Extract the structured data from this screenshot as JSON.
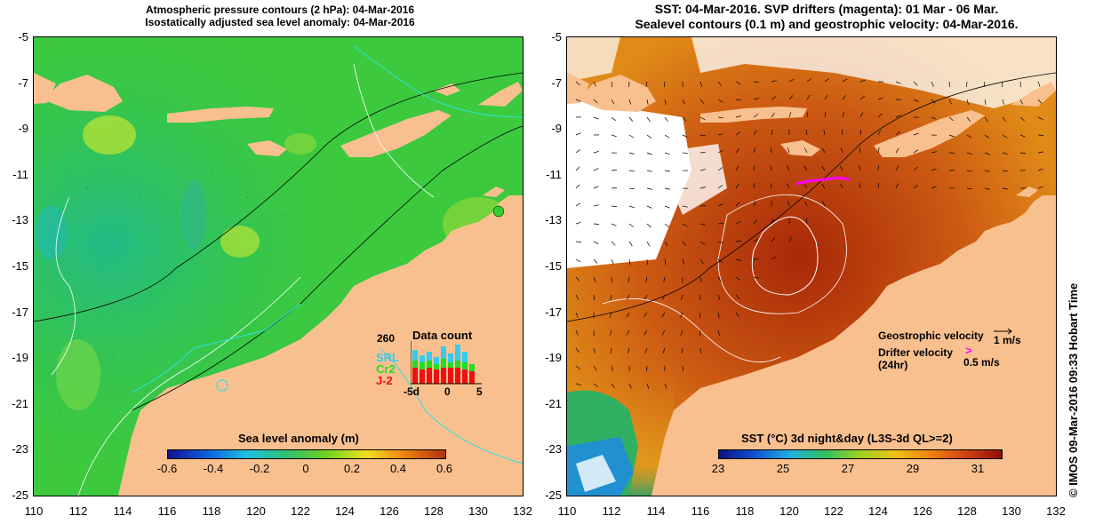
{
  "left_panel": {
    "title_line1": "Atmospheric pressure contours (2 hPa): 04-Mar-2016",
    "title_line2": "Isostatically adjusted sea level anomaly: 04-Mar-2016",
    "colorbar": {
      "label": "Sea level anomaly (m)",
      "ticks": [
        "-0.6",
        "-0.4",
        "-0.2",
        "0",
        "0.2",
        "0.4",
        "0.6"
      ]
    },
    "inset": {
      "title": "Data count",
      "max_label": "260",
      "series": [
        {
          "name": "SRL",
          "color": "#33ccee"
        },
        {
          "name": "Cr2",
          "color": "#22dd22"
        },
        {
          "name": "J-2",
          "color": "#ee1111"
        }
      ],
      "x_ticks": [
        "-5d",
        "0",
        "5"
      ]
    }
  },
  "right_panel": {
    "title_line1": "SST: 04-Mar-2016. SVP drifters (magenta): 01 Mar - 06 Mar.",
    "title_line2": "Sealevel contours (0.1 m) and geostrophic velocity: 04-Mar-2016.",
    "legend": {
      "geostrophic_label": "Geostrophic velocity",
      "geostrophic_scale": "1 m/s",
      "drifter_label": "Drifter velocity",
      "drifter_sub": "(24hr)",
      "drifter_scale": "0.5 m/s"
    },
    "colorbar": {
      "label": "SST (°C) 3d night&day (L3S-3d QL>=2)",
      "ticks": [
        "23",
        "25",
        "27",
        "29",
        "31"
      ]
    }
  },
  "axes": {
    "y_ticks": [
      "-5",
      "-7",
      "-9",
      "-11",
      "-13",
      "-15",
      "-17",
      "-19",
      "-21",
      "-23",
      "-25"
    ],
    "x_ticks": [
      "110",
      "112",
      "114",
      "116",
      "118",
      "120",
      "122",
      "124",
      "126",
      "128",
      "130",
      "132"
    ]
  },
  "credit": "© IMOS 09-Mar-2016 09:33 Hobart Time",
  "colors": {
    "land": "#f9c08f",
    "sea_green": "#33cc44",
    "sst_warm": "#c04a10",
    "drifter": "#ff00ff"
  }
}
